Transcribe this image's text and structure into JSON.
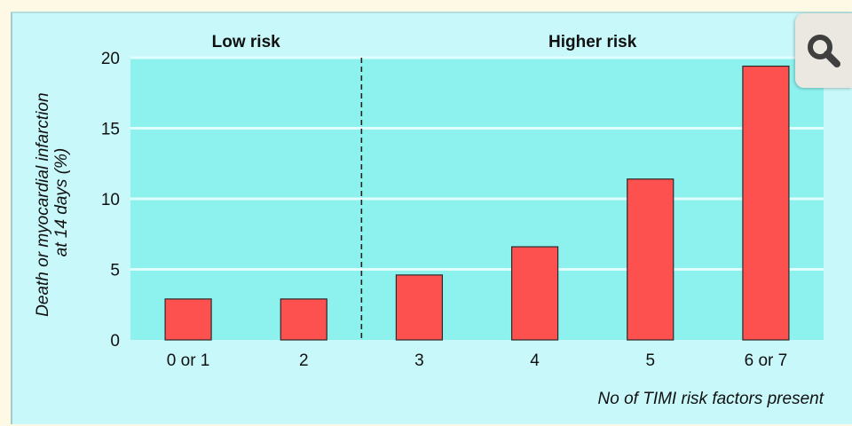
{
  "chart_data": {
    "type": "bar",
    "categories": [
      "0 or 1",
      "2",
      "3",
      "4",
      "5",
      "6 or 7"
    ],
    "values": [
      2.9,
      2.9,
      4.6,
      6.6,
      11.4,
      19.4
    ],
    "ylim": [
      0,
      20
    ],
    "yticks": [
      "0",
      "5",
      "10",
      "15",
      "20"
    ],
    "ylabel_line1": "Death or myocardial infarction",
    "ylabel_line2": "at 14 days (%)",
    "xlabel": "No of TIMI risk factors present",
    "groups": [
      {
        "label": "Low risk",
        "categories": [
          "0 or 1",
          "2"
        ]
      },
      {
        "label": "Higher risk",
        "categories": [
          "3",
          "4",
          "5",
          "6 or 7"
        ]
      }
    ],
    "divider_after_category": "2",
    "grid": true,
    "bar_color": "#fd5150",
    "plot_background": "#8df2ee",
    "gridline_color": "#e0fefe"
  },
  "zoom_button": {
    "icon": "magnifier-icon"
  }
}
